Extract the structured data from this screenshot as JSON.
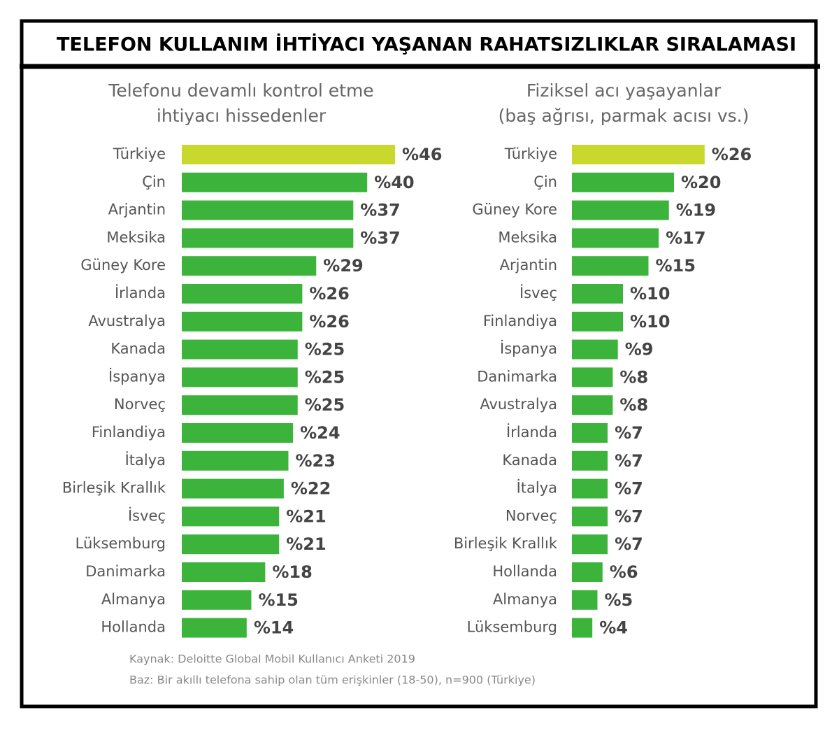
{
  "title": "TELEFON KULLANIM İHTİYACI YAŞANAN RAHATSIZLIKLAR SIRALAMASI",
  "source": "Kaynak: Deloitte Global Mobil Kullanıcı Anketi 2019",
  "note": "Baz: Bir akıllı telefona sahip olan tüm erişkinler (18-50), n=900 (Türkiye)",
  "chart_data": [
    {
      "type": "bar",
      "orientation": "horizontal",
      "title": [
        "Telefonu devamlı kontrol etme",
        "ihtiyacı hissedenler"
      ],
      "categories": [
        "Türkiye",
        "Çin",
        "Arjantin",
        "Meksika",
        "Güney Kore",
        "İrlanda",
        "Avustralya",
        "Kanada",
        "İspanya",
        "Norveç",
        "Finlandiya",
        "İtalya",
        "Birleşik Krallık",
        "İsveç",
        "Lüksemburg",
        "Danimarka",
        "Almanya",
        "Hollanda"
      ],
      "values": [
        46,
        40,
        37,
        37,
        29,
        26,
        26,
        25,
        25,
        25,
        24,
        23,
        22,
        21,
        21,
        18,
        15,
        14
      ],
      "value_labels": [
        "%46",
        "%40",
        "%37",
        "%37",
        "%29",
        "%26",
        "%26",
        "%25",
        "%25",
        "%25",
        "%24",
        "%23",
        "%22",
        "%21",
        "%21",
        "%18",
        "%15",
        "%14"
      ],
      "colors": [
        "#c8d82c",
        "#3cb43c",
        "#3cb43c",
        "#3cb43c",
        "#3cb43c",
        "#3cb43c",
        "#3cb43c",
        "#3cb43c",
        "#3cb43c",
        "#3cb43c",
        "#3cb43c",
        "#3cb43c",
        "#3cb43c",
        "#3cb43c",
        "#3cb43c",
        "#3cb43c",
        "#3cb43c",
        "#3cb43c"
      ]
    },
    {
      "type": "bar",
      "orientation": "horizontal",
      "title": [
        "Fiziksel acı yaşayanlar",
        "(baş ağrısı, parmak acısı vs.)"
      ],
      "categories": [
        "Türkiye",
        "Çin",
        "Güney Kore",
        "Meksika",
        "Arjantin",
        "İsveç",
        "Finlandiya",
        "İspanya",
        "Danimarka",
        "Avustralya",
        "İrlanda",
        "Kanada",
        "İtalya",
        "Norveç",
        "Birleşik Krallık",
        "Hollanda",
        "Almanya",
        "Lüksemburg"
      ],
      "values": [
        26,
        20,
        19,
        17,
        15,
        10,
        10,
        9,
        8,
        8,
        7,
        7,
        7,
        7,
        7,
        6,
        5,
        4
      ],
      "value_labels": [
        "%26",
        "%20",
        "%19",
        "%17",
        "%15",
        "%10",
        "%10",
        "%9",
        "%8",
        "%8",
        "%7",
        "%7",
        "%7",
        "%7",
        "%7",
        "%6",
        "%5",
        "%4"
      ],
      "colors": [
        "#c8d82c",
        "#3cb43c",
        "#3cb43c",
        "#3cb43c",
        "#3cb43c",
        "#3cb43c",
        "#3cb43c",
        "#3cb43c",
        "#3cb43c",
        "#3cb43c",
        "#3cb43c",
        "#3cb43c",
        "#3cb43c",
        "#3cb43c",
        "#3cb43c",
        "#3cb43c",
        "#3cb43c",
        "#3cb43c"
      ]
    }
  ]
}
